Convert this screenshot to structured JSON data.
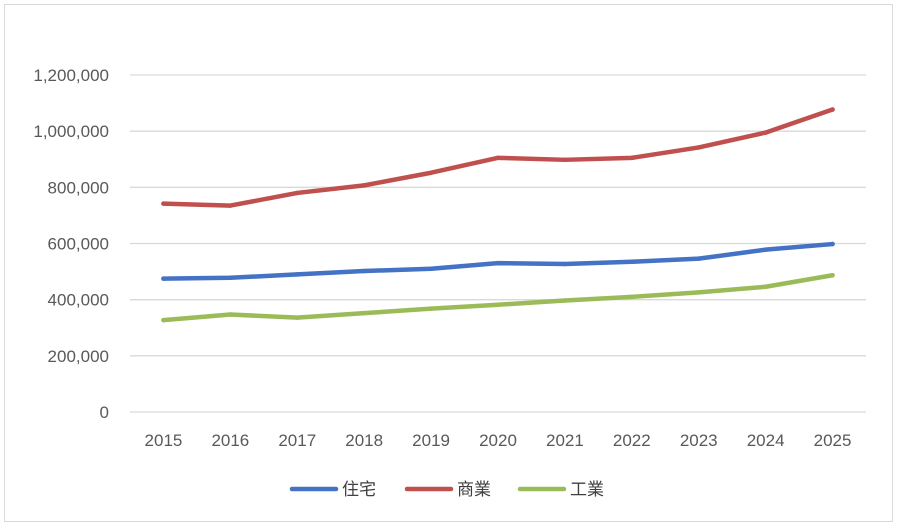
{
  "chart_data": {
    "type": "line",
    "title": "",
    "xlabel": "",
    "ylabel": "",
    "categories": [
      "2015",
      "2016",
      "2017",
      "2018",
      "2019",
      "2020",
      "2021",
      "2022",
      "2023",
      "2024",
      "2025"
    ],
    "ylim": [
      0,
      1200000
    ],
    "yticks": [
      "0",
      "200,000",
      "400,000",
      "600,000",
      "800,000",
      "1,000,000",
      "1,200,000"
    ],
    "grid": true,
    "legend_position": "bottom",
    "series": [
      {
        "name": "住宅",
        "color": "#4472c4",
        "values": [
          475000,
          478000,
          490000,
          502000,
          510000,
          530000,
          527000,
          535000,
          546000,
          578000,
          598000
        ]
      },
      {
        "name": "商業",
        "color": "#c0504d",
        "values": [
          742000,
          735000,
          780000,
          807000,
          852000,
          905000,
          898000,
          905000,
          942000,
          995000,
          1077000
        ]
      },
      {
        "name": "工業",
        "color": "#9bbb59",
        "values": [
          327000,
          347000,
          336000,
          352000,
          368000,
          382000,
          397000,
          410000,
          426000,
          446000,
          487000
        ]
      }
    ]
  }
}
